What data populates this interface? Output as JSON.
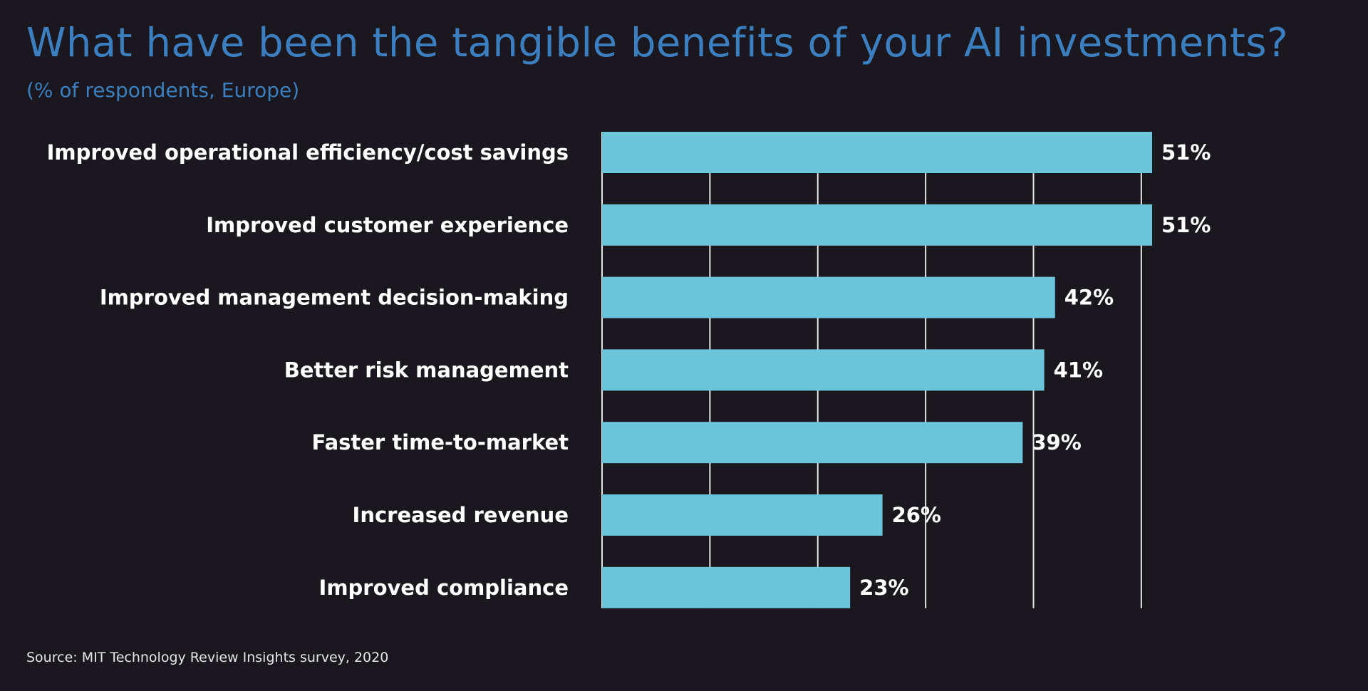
{
  "title": "What have been the tangible benefits of your AI investments?",
  "subtitle": "(% of respondents, Europe)",
  "source": "Source: MIT Technology Review Insights survey, 2020",
  "colors": {
    "background": "#1a181e",
    "title": "#3b7fc0",
    "bar": "#6ac5db",
    "text": "#ffffff",
    "grid": "#e6e6e6"
  },
  "chart_data": {
    "type": "bar",
    "orientation": "horizontal",
    "categories": [
      "Improved operational efficiency/cost savings",
      "Improved customer experience",
      "Improved management decision-making",
      "Better risk management",
      "Faster time-to-market",
      "Increased revenue",
      "Improved compliance"
    ],
    "values": [
      51,
      51,
      42,
      41,
      39,
      26,
      23
    ],
    "value_labels": [
      "51%",
      "51%",
      "42%",
      "41%",
      "39%",
      "26%",
      "23%"
    ],
    "unit": "%",
    "xlim": [
      0,
      51
    ],
    "gridlines": [
      0,
      10,
      20,
      30,
      40,
      50
    ],
    "grid": true,
    "legend": "none"
  }
}
